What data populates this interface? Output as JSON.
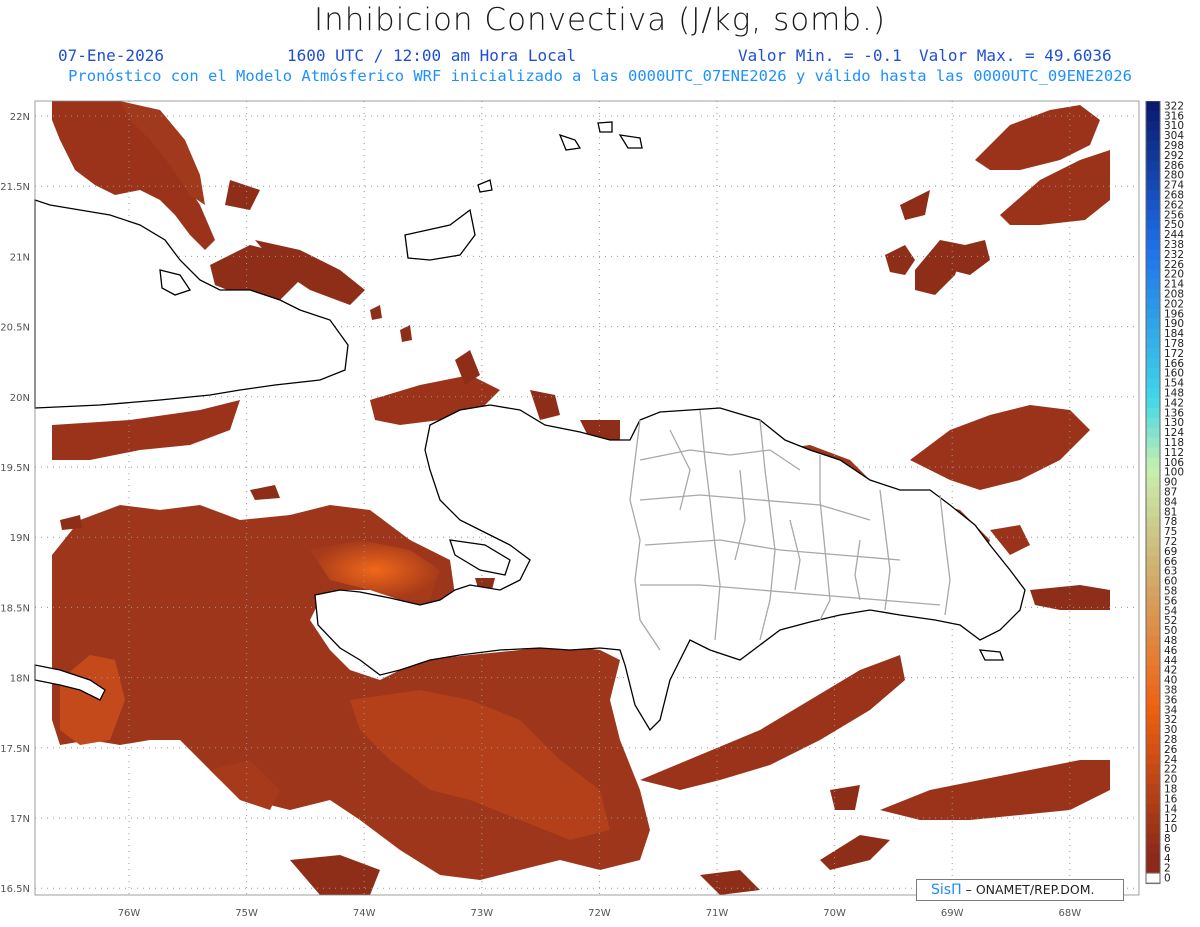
{
  "header": {
    "title": "Inhibicion Convectiva (J/kg, somb.)",
    "date": "07-Ene-2026",
    "time": "1600 UTC / 12:00 am Hora Local",
    "min_label": "Valor Min. = -0.1",
    "max_label": "Valor Max. = 49.6036",
    "forecast": "Pronóstico con el Modelo Atmósferico WRF inicializado a las 0000UTC_07ENE2026 y válido hasta las  0000UTC_09ENE2026"
  },
  "credit": {
    "brand": "SisΠ",
    "org": "– ONAMET/REP.DOM."
  },
  "axes": {
    "lat_labels": [
      "22N",
      "21.5N",
      "21N",
      "20.5N",
      "20N",
      "19.5N",
      "19N",
      "18.5N",
      "18N",
      "17.5N",
      "17N",
      "16.5N"
    ],
    "lon_labels": [
      "76W",
      "75W",
      "74W",
      "73W",
      "72W",
      "71W",
      "70W",
      "69W",
      "68W"
    ]
  },
  "colorbar": {
    "labels": [
      "322",
      "316",
      "310",
      "304",
      "298",
      "292",
      "286",
      "280",
      "274",
      "268",
      "262",
      "256",
      "250",
      "244",
      "238",
      "232",
      "226",
      "220",
      "214",
      "208",
      "202",
      "196",
      "190",
      "184",
      "178",
      "172",
      "166",
      "160",
      "154",
      "148",
      "142",
      "136",
      "130",
      "124",
      "118",
      "112",
      "106",
      "100",
      "90",
      "87",
      "84",
      "81",
      "78",
      "75",
      "72",
      "69",
      "66",
      "63",
      "60",
      "58",
      "56",
      "54",
      "52",
      "50",
      "48",
      "46",
      "44",
      "42",
      "40",
      "38",
      "36",
      "34",
      "32",
      "30",
      "28",
      "26",
      "24",
      "22",
      "20",
      "18",
      "16",
      "14",
      "12",
      "10",
      "8",
      "6",
      "4",
      "2",
      "0"
    ],
    "colors": {
      "deep_blue": "#0a1a6e",
      "blue": "#1e6ee8",
      "cyan": "#40d8e8",
      "pale_green": "#c8f0b0",
      "tan": "#d0b070",
      "orange": "#f06010",
      "dark_red": "#8b2a1a"
    }
  },
  "colors": {
    "field_dark": "#8a2c18",
    "field_mid": "#b0401c",
    "field_hot": "#e85a10",
    "coast": "#000000",
    "border": "#a8a8a8",
    "grid": "#9a9a9a"
  }
}
